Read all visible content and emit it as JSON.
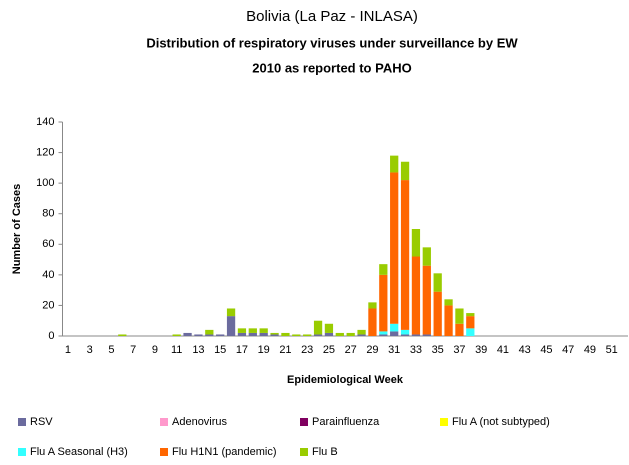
{
  "chart_data": {
    "type": "stacked_bar",
    "title": "Bolivia (La Paz - INLASA)",
    "subtitle": [
      "Distribution of respiratory viruses under surveillance by EW",
      "2010 as reported to PAHO"
    ],
    "x_label": "Epidemiological Week",
    "y_label": "Number of Cases",
    "categories": [
      1,
      null,
      3,
      null,
      5,
      null,
      7,
      null,
      9,
      null,
      11,
      null,
      13,
      null,
      15,
      null,
      17,
      null,
      19,
      null,
      21,
      null,
      23,
      null,
      25,
      null,
      27,
      null,
      29,
      null,
      31,
      null,
      33,
      null,
      35,
      null,
      37,
      null,
      39,
      null,
      41,
      null,
      43,
      null,
      45,
      null,
      47,
      null,
      49,
      null,
      51,
      null
    ],
    "ylim": [
      0,
      140
    ],
    "yticks": [
      0,
      20,
      40,
      60,
      80,
      100,
      120,
      140
    ],
    "grid": false,
    "legend": "bottom",
    "series": [
      {
        "name": "RSV",
        "color": "#6b6b9e",
        "values": [
          0,
          0,
          0,
          0,
          0,
          0,
          0,
          0,
          0,
          0,
          0,
          2,
          1,
          1,
          1,
          13,
          2,
          2,
          2,
          1,
          0,
          0,
          0,
          1,
          2,
          0,
          0,
          1,
          0,
          1,
          3,
          1,
          1,
          1,
          0,
          0,
          0,
          0,
          0,
          0,
          0,
          0,
          0,
          0,
          0,
          0,
          0,
          0,
          0,
          0,
          0,
          0
        ]
      },
      {
        "name": "Adenovirus",
        "color": "#ff99cc",
        "values": [
          0,
          0,
          0,
          0,
          0,
          0,
          0,
          0,
          0,
          0,
          0,
          0,
          0,
          0,
          0,
          0,
          0,
          0,
          0,
          0,
          0,
          0,
          0,
          0,
          0,
          0,
          0,
          0,
          0,
          0,
          0,
          0,
          0,
          0,
          0,
          0,
          0,
          0,
          0,
          0,
          0,
          0,
          0,
          0,
          0,
          0,
          0,
          0,
          0,
          0,
          0,
          0
        ]
      },
      {
        "name": "Parainfluenza",
        "color": "#800060",
        "values": [
          0,
          0,
          0,
          0,
          0,
          0,
          0,
          0,
          0,
          0,
          0,
          0,
          0,
          0,
          0,
          0,
          0,
          0,
          0,
          0,
          0,
          0,
          0,
          0,
          0,
          0,
          0,
          0,
          0,
          0,
          0,
          0,
          0,
          0,
          0,
          0,
          0,
          0,
          0,
          0,
          0,
          0,
          0,
          0,
          0,
          0,
          0,
          0,
          0,
          0,
          0,
          0
        ]
      },
      {
        "name": "Flu A (not subtyped)",
        "color": "#ffff00",
        "values": [
          0,
          0,
          0,
          0,
          0,
          0,
          0,
          0,
          0,
          0,
          0,
          0,
          0,
          0,
          0,
          0,
          0,
          0,
          0,
          0,
          0,
          0,
          0,
          0,
          0,
          0,
          0,
          0,
          0,
          0,
          0,
          0,
          0,
          0,
          0,
          0,
          0,
          0,
          0,
          0,
          0,
          0,
          0,
          0,
          0,
          0,
          0,
          0,
          0,
          0,
          0,
          0
        ]
      },
      {
        "name": "Flu A Seasonal (H3)",
        "color": "#33ffff",
        "values": [
          0,
          0,
          0,
          0,
          0,
          0,
          0,
          0,
          0,
          0,
          0,
          0,
          0,
          0,
          0,
          0,
          0,
          0,
          0,
          0,
          0,
          0,
          0,
          0,
          0,
          0,
          0,
          0,
          0,
          2,
          5,
          3,
          0,
          0,
          0,
          0,
          0,
          5,
          0,
          0,
          0,
          0,
          0,
          0,
          0,
          0,
          0,
          0,
          0,
          0,
          0,
          0
        ]
      },
      {
        "name": "Flu H1N1 (pandemic)",
        "color": "#ff6600",
        "values": [
          0,
          0,
          0,
          0,
          0,
          0,
          0,
          0,
          0,
          0,
          0,
          0,
          0,
          0,
          0,
          0,
          0,
          0,
          0,
          0,
          0,
          0,
          0,
          0,
          0,
          0,
          0,
          0,
          18,
          37,
          99,
          98,
          51,
          45,
          29,
          20,
          8,
          8,
          0,
          0,
          0,
          0,
          0,
          0,
          0,
          0,
          0,
          0,
          0,
          0,
          0,
          0
        ]
      },
      {
        "name": "Flu B",
        "color": "#99cc00",
        "values": [
          0,
          0,
          0,
          0,
          0,
          1,
          0,
          0,
          0,
          0,
          1,
          0,
          0,
          3,
          0,
          5,
          3,
          3,
          3,
          1,
          2,
          1,
          1,
          9,
          6,
          2,
          2,
          3,
          4,
          7,
          11,
          12,
          18,
          12,
          12,
          4,
          10,
          2,
          0,
          0,
          0,
          0,
          0,
          0,
          0,
          0,
          0,
          0,
          0,
          0,
          0,
          0
        ]
      }
    ]
  }
}
